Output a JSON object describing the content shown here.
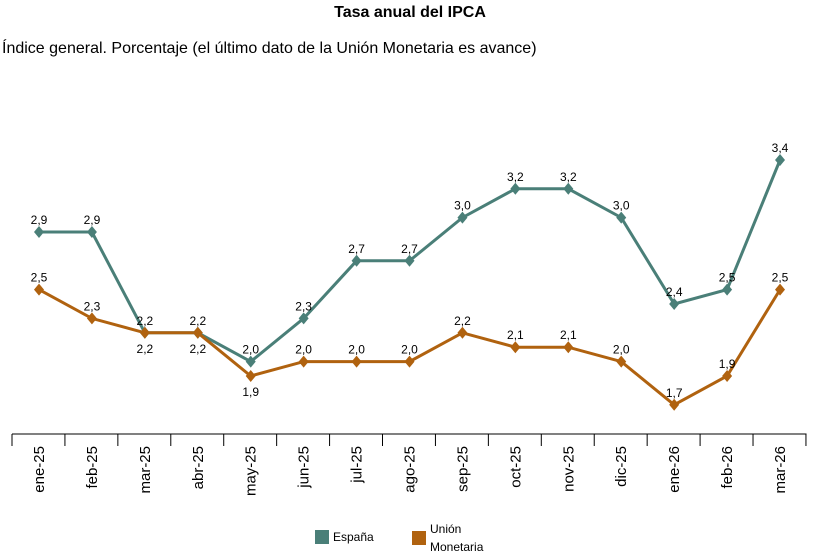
{
  "chart_data": {
    "type": "line",
    "title": "Tasa anual del IPCA",
    "subtitle": "Índice general. Porcentaje (el último dato de la Unión Monetaria es avance)",
    "categories": [
      "ene-25",
      "feb-25",
      "mar-25",
      "abr-25",
      "may-25",
      "jun-25",
      "jul-25",
      "ago-25",
      "sep-25",
      "oct-25",
      "nov-25",
      "dic-25",
      "ene-26",
      "feb-26",
      "mar-26"
    ],
    "series": [
      {
        "name": "España",
        "color": "#4a7f78",
        "marker": "diamond",
        "values": [
          2.9,
          2.9,
          2.2,
          2.2,
          2.0,
          2.3,
          2.7,
          2.7,
          3.0,
          3.2,
          3.2,
          3.0,
          2.4,
          2.5,
          3.4
        ],
        "labels": [
          "2,9",
          "2,9",
          "2,2",
          "2,2",
          "2,0",
          "2,3",
          "2,7",
          "2,7",
          "3,0",
          "3,2",
          "3,2",
          "3,0",
          "2,4",
          "2,5",
          "3,4"
        ]
      },
      {
        "name": "Unión Monetaria",
        "name_lines": [
          "Unión",
          "Monetaria"
        ],
        "color": "#b0620f",
        "marker": "diamond",
        "values": [
          2.5,
          2.3,
          2.2,
          2.2,
          1.9,
          2.0,
          2.0,
          2.0,
          2.2,
          2.1,
          2.1,
          2.0,
          1.7,
          1.9,
          2.5
        ],
        "labels": [
          "2,5",
          "2,3",
          "2,2",
          "2,2",
          "1,9",
          "2,0",
          "2,0",
          "2,0",
          "2,2",
          "2,1",
          "2,1",
          "2,0",
          "1,7",
          "1,9",
          "2,5"
        ]
      }
    ],
    "grid": false,
    "legend": "bottom"
  }
}
